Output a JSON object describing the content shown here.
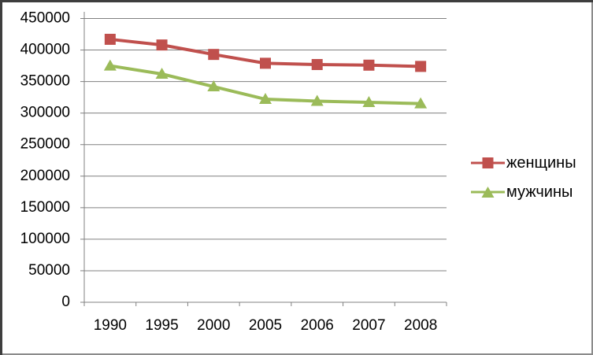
{
  "window": {
    "background": "#ffffff",
    "border_dark": "#3e3e3e",
    "border_light": "#8b8b8b"
  },
  "chart_data": {
    "type": "line",
    "title": "",
    "xlabel": "",
    "ylabel": "",
    "categories": [
      "1990",
      "1995",
      "2000",
      "2005",
      "2006",
      "2007",
      "2008"
    ],
    "series": [
      {
        "name": "женщины",
        "color": "#c0504d",
        "marker": "square",
        "values": [
          417000,
          408000,
          393000,
          379000,
          377000,
          376000,
          374000
        ]
      },
      {
        "name": "мужчины",
        "color": "#9bbb59",
        "marker": "triangle",
        "values": [
          375000,
          362000,
          342000,
          322000,
          319000,
          317000,
          315000
        ]
      }
    ],
    "ylim": [
      0,
      450000
    ],
    "yticks": [
      0,
      50000,
      100000,
      150000,
      200000,
      250000,
      300000,
      350000,
      400000,
      450000
    ],
    "ytick_labels": [
      "0",
      "50000",
      "100000",
      "150000",
      "200000",
      "250000",
      "300000",
      "350000",
      "400000",
      "450000"
    ],
    "grid": true,
    "legend_position": "right",
    "colors": {
      "gridline": "#808080",
      "axis": "#808080",
      "text": "#000000"
    }
  }
}
